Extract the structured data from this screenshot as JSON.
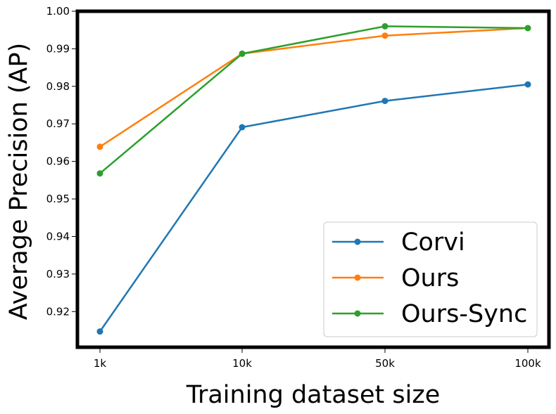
{
  "chart_data": {
    "type": "line",
    "categories": [
      "1k",
      "10k",
      "50k",
      "100k"
    ],
    "series": [
      {
        "name": "Corvi",
        "color": "#1f77b4",
        "values": [
          0.9147,
          0.9691,
          0.9761,
          0.9805
        ]
      },
      {
        "name": "Ours",
        "color": "#ff7f0e",
        "values": [
          0.9639,
          0.9887,
          0.9935,
          0.9955
        ]
      },
      {
        "name": "Ours-Sync",
        "color": "#2ca02c",
        "values": [
          0.9568,
          0.9887,
          0.996,
          0.9955
        ]
      }
    ],
    "xlabel": "Training dataset size",
    "ylabel": "Average Precision (AP)",
    "ylim": [
      0.9105,
      1.0
    ],
    "yticks": [
      "0.92",
      "0.93",
      "0.94",
      "0.95",
      "0.96",
      "0.97",
      "0.98",
      "0.99",
      "1.00"
    ],
    "ytick_values": [
      0.92,
      0.93,
      0.94,
      0.95,
      0.96,
      0.97,
      0.98,
      0.99,
      1.0
    ],
    "grid": false,
    "legend_position": "lower-right"
  }
}
